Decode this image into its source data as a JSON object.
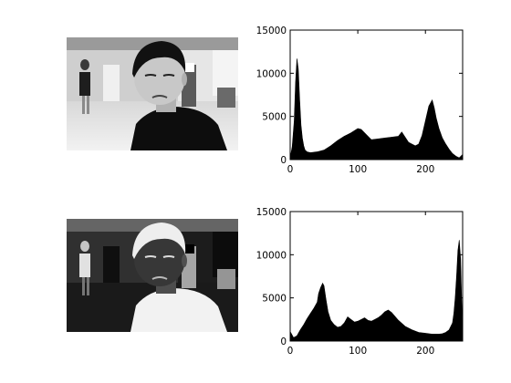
{
  "colors": {
    "background": "#ffffff",
    "axis": "#000000",
    "histogram_fill": "#000000"
  },
  "images": [
    {
      "name": "original-grayscale-photo",
      "tone": "normal"
    },
    {
      "name": "negative-grayscale-photo",
      "tone": "inverted"
    }
  ],
  "chart_data": [
    {
      "type": "area",
      "xlim": [
        0,
        255
      ],
      "ylim": [
        0,
        15000
      ],
      "x_ticks": [
        0,
        100,
        200
      ],
      "y_ticks": [
        0,
        5000,
        10000,
        15000
      ],
      "grid": false,
      "legend": "none",
      "series": [
        {
          "x": [
            0,
            3,
            6,
            8,
            10,
            12,
            14,
            16,
            18,
            20,
            22,
            25,
            30,
            35,
            40,
            50,
            60,
            70,
            80,
            90,
            100,
            105,
            110,
            115,
            120,
            130,
            140,
            150,
            160,
            165,
            170,
            175,
            180,
            185,
            190,
            195,
            200,
            205,
            210,
            213,
            216,
            220,
            225,
            230,
            235,
            240,
            245,
            250,
            255
          ],
          "values": [
            200,
            1500,
            4500,
            9000,
            11700,
            10500,
            7000,
            4000,
            2500,
            1600,
            1100,
            900,
            800,
            850,
            900,
            1100,
            1600,
            2200,
            2700,
            3100,
            3600,
            3500,
            3100,
            2700,
            2300,
            2400,
            2500,
            2600,
            2700,
            3200,
            2600,
            2000,
            1800,
            1600,
            1800,
            2800,
            4500,
            6200,
            6900,
            6000,
            4800,
            3600,
            2500,
            1800,
            1200,
            700,
            400,
            200,
            600
          ]
        }
      ]
    },
    {
      "type": "area",
      "xlim": [
        0,
        255
      ],
      "ylim": [
        0,
        15000
      ],
      "x_ticks": [
        0,
        100,
        200
      ],
      "y_ticks": [
        0,
        5000,
        10000,
        15000
      ],
      "grid": false,
      "legend": "none",
      "series": [
        {
          "x": [
            0,
            5,
            10,
            15,
            20,
            25,
            30,
            35,
            40,
            42,
            45,
            48,
            50,
            53,
            56,
            60,
            65,
            70,
            75,
            80,
            85,
            90,
            95,
            100,
            105,
            110,
            115,
            120,
            125,
            130,
            135,
            140,
            145,
            150,
            160,
            170,
            180,
            190,
            200,
            210,
            220,
            225,
            230,
            235,
            240,
            242,
            244,
            246,
            248,
            250,
            252,
            255
          ],
          "values": [
            1100,
            400,
            600,
            1300,
            1900,
            2600,
            3200,
            3800,
            4500,
            5500,
            6200,
            6700,
            6400,
            4800,
            3400,
            2400,
            1900,
            1600,
            1700,
            2100,
            2800,
            2500,
            2200,
            2300,
            2500,
            2700,
            2400,
            2300,
            2500,
            2700,
            3000,
            3400,
            3600,
            3300,
            2400,
            1700,
            1300,
            1000,
            900,
            800,
            800,
            850,
            1000,
            1300,
            2100,
            3200,
            5000,
            7500,
            10500,
            11700,
            9500,
            300
          ]
        }
      ]
    }
  ]
}
